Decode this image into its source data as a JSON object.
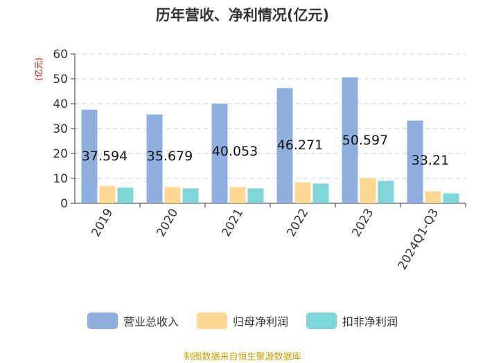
{
  "chart_data": {
    "type": "bar",
    "title": "历年营收、净利情况(亿元)",
    "ylabel": "(亿元)",
    "xlabel": "",
    "ylim": [
      0,
      60
    ],
    "yticks": [
      0,
      10,
      20,
      30,
      40,
      50,
      60
    ],
    "categories": [
      "2019",
      "2020",
      "2021",
      "2022",
      "2023",
      "2024Q1-Q3"
    ],
    "series": [
      {
        "name": "营业总收入",
        "color": "#8fb0de",
        "values": [
          37.594,
          35.679,
          40.053,
          46.271,
          50.597,
          33.21
        ],
        "labels": [
          "37.594",
          "35.679",
          "40.053",
          "46.271",
          "50.597",
          "33.21"
        ]
      },
      {
        "name": "归母净利润",
        "color": "#ffd994",
        "values": [
          6.9,
          6.5,
          6.5,
          8.4,
          10.2,
          4.8
        ]
      },
      {
        "name": "扣非净利润",
        "color": "#7fd6d6",
        "values": [
          6.3,
          6.0,
          6.0,
          7.9,
          9.0,
          4.0
        ]
      }
    ]
  },
  "footer": {
    "source": "制图数据来自恒生聚源数据库"
  }
}
